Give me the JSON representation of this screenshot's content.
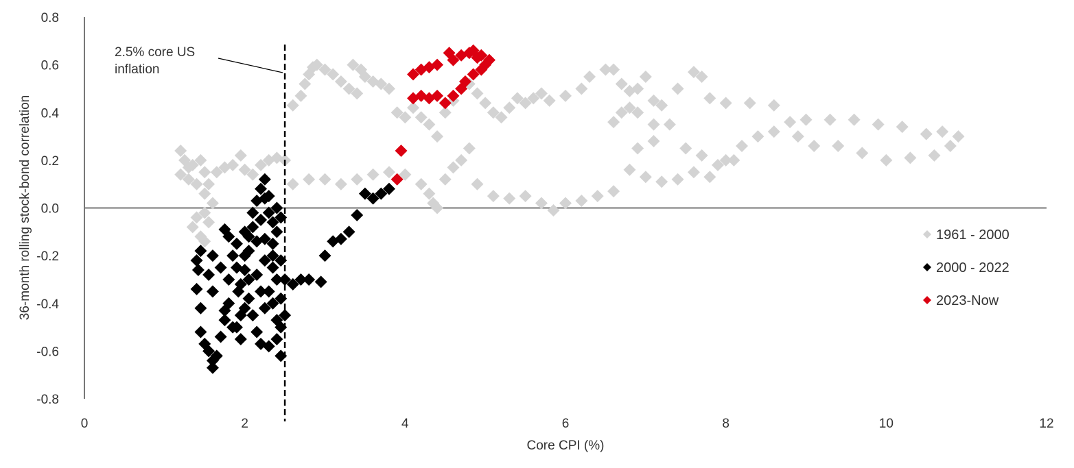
{
  "chart_data": {
    "type": "scatter",
    "title": "",
    "xlabel": "Core CPI (%)",
    "ylabel": "36-month rolling stock-bond correlation",
    "xlim": [
      0,
      12
    ],
    "ylim": [
      -0.8,
      0.8
    ],
    "xticks": [
      0,
      2,
      4,
      6,
      8,
      10,
      12
    ],
    "yticks": [
      "-0.8",
      "-0.6",
      "-0.4",
      "-0.2",
      "0.0",
      "0.2",
      "0.4",
      "0.6",
      "0.8"
    ],
    "grid": false,
    "legend_placement": "right",
    "reference_line": {
      "x": 2.5,
      "label": "2.5% core US inflation",
      "style": "dashed"
    },
    "series": [
      {
        "name": "1961 - 2000",
        "color": "#d3d3d3",
        "points": [
          [
            1.2,
            0.24
          ],
          [
            1.25,
            0.2
          ],
          [
            1.3,
            0.17
          ],
          [
            1.2,
            0.14
          ],
          [
            1.3,
            0.12
          ],
          [
            1.35,
            0.18
          ],
          [
            1.45,
            0.2
          ],
          [
            1.5,
            0.15
          ],
          [
            1.4,
            0.1
          ],
          [
            1.5,
            0.06
          ],
          [
            1.6,
            0.02
          ],
          [
            1.55,
            0.1
          ],
          [
            1.65,
            0.15
          ],
          [
            1.75,
            0.17
          ],
          [
            1.85,
            0.18
          ],
          [
            1.95,
            0.22
          ],
          [
            2.0,
            0.16
          ],
          [
            2.1,
            0.14
          ],
          [
            2.2,
            0.18
          ],
          [
            2.3,
            0.2
          ],
          [
            2.4,
            0.21
          ],
          [
            2.5,
            0.2
          ],
          [
            1.4,
            -0.04
          ],
          [
            1.35,
            -0.08
          ],
          [
            1.45,
            -0.12
          ],
          [
            1.5,
            -0.14
          ],
          [
            1.55,
            -0.06
          ],
          [
            1.5,
            -0.02
          ],
          [
            2.6,
            0.43
          ],
          [
            2.7,
            0.47
          ],
          [
            2.75,
            0.52
          ],
          [
            2.8,
            0.56
          ],
          [
            2.85,
            0.59
          ],
          [
            2.9,
            0.6
          ],
          [
            3.0,
            0.58
          ],
          [
            3.1,
            0.56
          ],
          [
            3.2,
            0.53
          ],
          [
            3.3,
            0.5
          ],
          [
            3.4,
            0.48
          ],
          [
            3.35,
            0.6
          ],
          [
            3.45,
            0.58
          ],
          [
            3.5,
            0.55
          ],
          [
            3.6,
            0.53
          ],
          [
            3.7,
            0.52
          ],
          [
            3.8,
            0.5
          ],
          [
            3.9,
            0.4
          ],
          [
            4.0,
            0.38
          ],
          [
            4.1,
            0.42
          ],
          [
            4.2,
            0.38
          ],
          [
            4.3,
            0.35
          ],
          [
            4.4,
            0.3
          ],
          [
            4.5,
            0.4
          ],
          [
            4.6,
            0.45
          ],
          [
            4.7,
            0.5
          ],
          [
            4.8,
            0.52
          ],
          [
            4.9,
            0.48
          ],
          [
            5.0,
            0.44
          ],
          [
            5.1,
            0.4
          ],
          [
            5.2,
            0.38
          ],
          [
            5.3,
            0.42
          ],
          [
            5.4,
            0.46
          ],
          [
            5.5,
            0.44
          ],
          [
            5.6,
            0.46
          ],
          [
            5.7,
            0.48
          ],
          [
            5.8,
            0.45
          ],
          [
            6.0,
            0.47
          ],
          [
            6.2,
            0.5
          ],
          [
            6.3,
            0.55
          ],
          [
            6.5,
            0.58
          ],
          [
            6.6,
            0.58
          ],
          [
            6.7,
            0.52
          ],
          [
            6.8,
            0.49
          ],
          [
            6.9,
            0.5
          ],
          [
            7.0,
            0.55
          ],
          [
            7.1,
            0.45
          ],
          [
            7.2,
            0.43
          ],
          [
            7.4,
            0.5
          ],
          [
            7.6,
            0.57
          ],
          [
            7.7,
            0.55
          ],
          [
            7.8,
            0.46
          ],
          [
            8.0,
            0.44
          ],
          [
            8.3,
            0.44
          ],
          [
            8.6,
            0.43
          ],
          [
            6.6,
            0.36
          ],
          [
            6.7,
            0.4
          ],
          [
            6.8,
            0.42
          ],
          [
            6.9,
            0.4
          ],
          [
            7.1,
            0.35
          ],
          [
            7.3,
            0.35
          ],
          [
            7.5,
            0.25
          ],
          [
            7.7,
            0.22
          ],
          [
            7.9,
            0.18
          ],
          [
            8.1,
            0.2
          ],
          [
            8.2,
            0.26
          ],
          [
            8.4,
            0.3
          ],
          [
            8.6,
            0.32
          ],
          [
            8.8,
            0.36
          ],
          [
            9.0,
            0.37
          ],
          [
            9.3,
            0.37
          ],
          [
            9.6,
            0.37
          ],
          [
            9.9,
            0.35
          ],
          [
            10.2,
            0.34
          ],
          [
            10.5,
            0.31
          ],
          [
            10.7,
            0.32
          ],
          [
            10.9,
            0.3
          ],
          [
            10.8,
            0.26
          ],
          [
            10.6,
            0.22
          ],
          [
            10.3,
            0.21
          ],
          [
            10.0,
            0.2
          ],
          [
            9.7,
            0.23
          ],
          [
            9.4,
            0.26
          ],
          [
            9.1,
            0.26
          ],
          [
            8.9,
            0.3
          ],
          [
            2.6,
            0.1
          ],
          [
            2.8,
            0.12
          ],
          [
            3.0,
            0.12
          ],
          [
            3.2,
            0.1
          ],
          [
            3.4,
            0.12
          ],
          [
            3.6,
            0.14
          ],
          [
            3.8,
            0.15
          ],
          [
            4.0,
            0.14
          ],
          [
            4.2,
            0.1
          ],
          [
            4.3,
            0.06
          ],
          [
            4.35,
            0.02
          ],
          [
            4.4,
            0.0
          ],
          [
            4.5,
            0.12
          ],
          [
            4.6,
            0.17
          ],
          [
            4.7,
            0.2
          ],
          [
            4.8,
            0.25
          ],
          [
            4.9,
            0.1
          ],
          [
            5.1,
            0.05
          ],
          [
            5.3,
            0.04
          ],
          [
            5.5,
            0.05
          ],
          [
            5.7,
            0.02
          ],
          [
            5.85,
            -0.01
          ],
          [
            6.0,
            0.02
          ],
          [
            6.2,
            0.03
          ],
          [
            6.4,
            0.05
          ],
          [
            6.6,
            0.07
          ],
          [
            6.8,
            0.16
          ],
          [
            7.0,
            0.13
          ],
          [
            7.2,
            0.11
          ],
          [
            7.4,
            0.12
          ],
          [
            7.6,
            0.15
          ],
          [
            7.8,
            0.13
          ],
          [
            8.0,
            0.2
          ],
          [
            6.9,
            0.25
          ],
          [
            7.1,
            0.28
          ]
        ]
      },
      {
        "name": "2000 - 2022",
        "color": "#000000",
        "points": [
          [
            1.45,
            -0.18
          ],
          [
            1.4,
            -0.22
          ],
          [
            1.42,
            -0.26
          ],
          [
            1.4,
            -0.34
          ],
          [
            1.45,
            -0.42
          ],
          [
            1.45,
            -0.52
          ],
          [
            1.5,
            -0.57
          ],
          [
            1.55,
            -0.6
          ],
          [
            1.6,
            -0.64
          ],
          [
            1.6,
            -0.67
          ],
          [
            1.65,
            -0.62
          ],
          [
            1.7,
            -0.54
          ],
          [
            1.75,
            -0.47
          ],
          [
            1.8,
            -0.4
          ],
          [
            1.8,
            -0.3
          ],
          [
            1.85,
            -0.2
          ],
          [
            1.8,
            -0.12
          ],
          [
            1.75,
            -0.09
          ],
          [
            1.9,
            -0.15
          ],
          [
            1.9,
            -0.25
          ],
          [
            1.92,
            -0.35
          ],
          [
            1.95,
            -0.45
          ],
          [
            1.9,
            -0.5
          ],
          [
            2.0,
            -0.42
          ],
          [
            2.05,
            -0.3
          ],
          [
            2.0,
            -0.2
          ],
          [
            2.05,
            -0.12
          ],
          [
            2.1,
            -0.08
          ],
          [
            2.1,
            -0.02
          ],
          [
            2.15,
            0.03
          ],
          [
            2.2,
            0.08
          ],
          [
            2.25,
            0.12
          ],
          [
            2.25,
            0.04
          ],
          [
            2.3,
            -0.02
          ],
          [
            2.35,
            -0.06
          ],
          [
            2.4,
            -0.1
          ],
          [
            2.35,
            -0.15
          ],
          [
            2.25,
            -0.13
          ],
          [
            2.15,
            -0.14
          ],
          [
            2.05,
            -0.18
          ],
          [
            2.0,
            -0.26
          ],
          [
            2.05,
            -0.38
          ],
          [
            2.1,
            -0.45
          ],
          [
            2.15,
            -0.52
          ],
          [
            2.2,
            -0.57
          ],
          [
            2.3,
            -0.58
          ],
          [
            2.4,
            -0.55
          ],
          [
            2.45,
            -0.5
          ],
          [
            2.5,
            -0.45
          ],
          [
            2.45,
            -0.38
          ],
          [
            2.4,
            -0.3
          ],
          [
            2.35,
            -0.25
          ],
          [
            2.3,
            -0.35
          ],
          [
            2.25,
            -0.42
          ],
          [
            2.2,
            -0.35
          ],
          [
            2.15,
            -0.28
          ],
          [
            2.25,
            -0.22
          ],
          [
            2.35,
            -0.2
          ],
          [
            2.45,
            -0.22
          ],
          [
            2.5,
            -0.3
          ],
          [
            2.45,
            -0.04
          ],
          [
            2.4,
            0.0
          ],
          [
            2.3,
            0.05
          ],
          [
            2.45,
            -0.62
          ],
          [
            1.95,
            -0.55
          ],
          [
            1.85,
            -0.5
          ],
          [
            1.75,
            -0.43
          ],
          [
            1.6,
            -0.35
          ],
          [
            1.55,
            -0.28
          ],
          [
            1.6,
            -0.2
          ],
          [
            1.7,
            -0.25
          ],
          [
            1.95,
            -0.32
          ],
          [
            2.0,
            -0.1
          ],
          [
            2.2,
            -0.05
          ],
          [
            2.35,
            -0.4
          ],
          [
            2.4,
            -0.47
          ],
          [
            2.6,
            -0.32
          ],
          [
            2.7,
            -0.3
          ],
          [
            2.8,
            -0.3
          ],
          [
            2.95,
            -0.31
          ],
          [
            3.0,
            -0.2
          ],
          [
            3.1,
            -0.14
          ],
          [
            3.2,
            -0.13
          ],
          [
            3.3,
            -0.1
          ],
          [
            3.4,
            -0.03
          ],
          [
            3.5,
            0.06
          ],
          [
            3.6,
            0.04
          ],
          [
            3.7,
            0.06
          ],
          [
            3.8,
            0.08
          ]
        ]
      },
      {
        "name": "2023-Now",
        "color": "#db0011",
        "points": [
          [
            4.1,
            0.46
          ],
          [
            4.2,
            0.47
          ],
          [
            4.3,
            0.46
          ],
          [
            4.4,
            0.47
          ],
          [
            4.5,
            0.44
          ],
          [
            4.6,
            0.47
          ],
          [
            4.7,
            0.5
          ],
          [
            4.75,
            0.53
          ],
          [
            4.85,
            0.56
          ],
          [
            4.95,
            0.58
          ],
          [
            5.0,
            0.6
          ],
          [
            4.9,
            0.63
          ],
          [
            4.8,
            0.65
          ],
          [
            4.7,
            0.64
          ],
          [
            4.6,
            0.62
          ],
          [
            4.55,
            0.65
          ],
          [
            4.4,
            0.6
          ],
          [
            4.3,
            0.59
          ],
          [
            4.2,
            0.58
          ],
          [
            4.1,
            0.56
          ],
          [
            4.85,
            0.66
          ],
          [
            4.95,
            0.64
          ],
          [
            5.05,
            0.62
          ],
          [
            3.95,
            0.24
          ],
          [
            3.9,
            0.12
          ]
        ]
      }
    ]
  }
}
